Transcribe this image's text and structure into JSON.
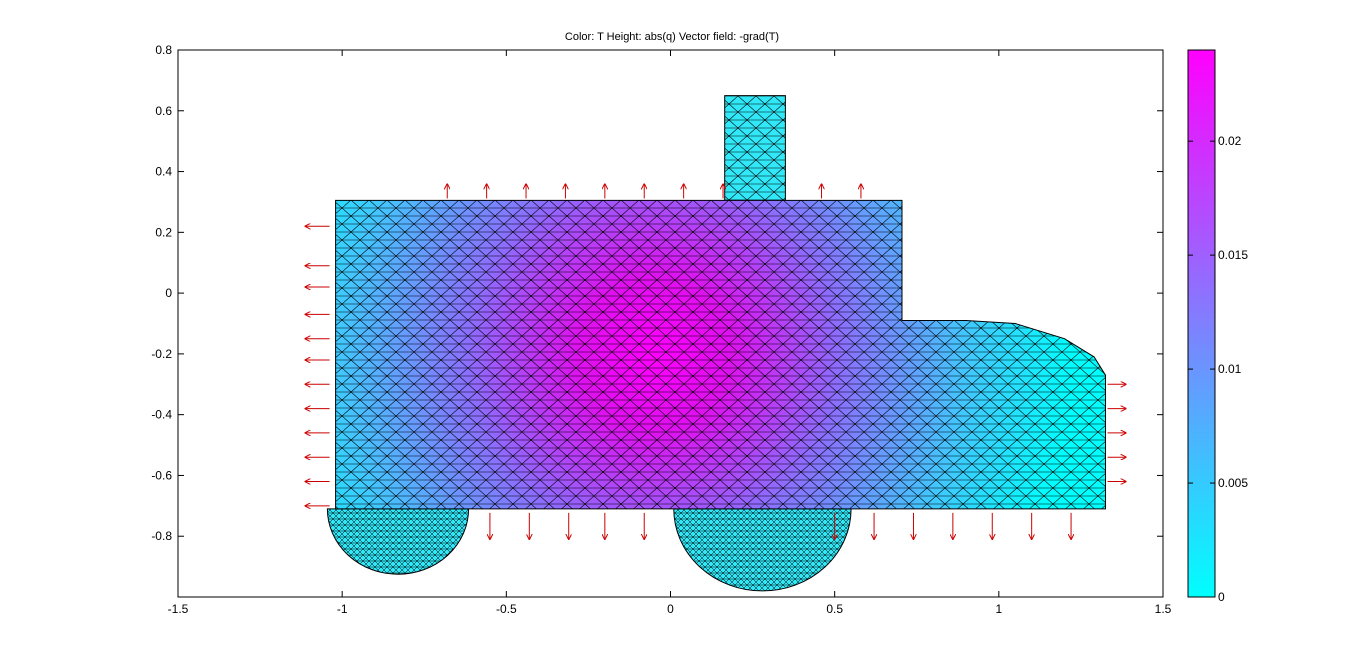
{
  "chart_data": {
    "type": "heatmap",
    "title": "Color: T  Height: abs(q)  Vector field: -grad(T)",
    "xlabel": "",
    "ylabel": "",
    "xlim": [
      -1.5,
      1.5
    ],
    "ylim": [
      -1.0,
      0.8
    ],
    "xticks": [
      -1.5,
      -1,
      -0.5,
      0,
      0.5,
      1,
      1.5
    ],
    "xtick_labels": [
      "-1.5",
      "-1",
      "-0.5",
      "0",
      "0.5",
      "1",
      "1.5"
    ],
    "yticks": [
      -0.8,
      -0.6,
      -0.4,
      -0.2,
      0,
      0.2,
      0.4,
      0.6,
      0.8
    ],
    "ytick_labels": [
      "-0.8",
      "-0.6",
      "-0.4",
      "-0.2",
      "0",
      "0.2",
      "0.4",
      "0.6",
      "0.8"
    ],
    "colorbar": {
      "range": [
        0,
        0.024
      ],
      "ticks": [
        0,
        0.005,
        0.01,
        0.015,
        0.02
      ],
      "tick_labels": [
        "0",
        "0.005",
        "0.01",
        "0.015",
        "0.02"
      ],
      "colors": [
        "#00ffff",
        "#ff00ff"
      ]
    },
    "geometry": {
      "body": [
        [
          -1.02,
          0.305
        ],
        [
          0.705,
          0.305
        ],
        [
          0.705,
          -0.09
        ],
        [
          0.9,
          -0.09
        ],
        [
          1.05,
          -0.1
        ],
        [
          1.2,
          -0.15
        ],
        [
          1.29,
          -0.21
        ],
        [
          1.325,
          -0.27
        ],
        [
          1.325,
          -0.71
        ],
        [
          -1.02,
          -0.71
        ]
      ],
      "chimney": [
        [
          0.165,
          0.65
        ],
        [
          0.35,
          0.65
        ],
        [
          0.35,
          0.305
        ],
        [
          0.165,
          0.305
        ]
      ],
      "wheels": [
        {
          "cx": -0.83,
          "cy": -0.71,
          "r": 0.215
        },
        {
          "cx": 0.28,
          "cy": -0.71,
          "r": 0.27
        }
      ],
      "hot_spot": [
        -0.05,
        -0.2
      ],
      "mesh": "black"
    },
    "vector_field": {
      "name": "-grad(T)",
      "color": "#cc0000",
      "left_side_y": [
        0.22,
        0.09,
        0.02,
        -0.07,
        -0.15,
        -0.22,
        -0.3,
        -0.38,
        -0.46,
        -0.54,
        -0.62,
        -0.7
      ],
      "top_side_x": [
        -0.68,
        -0.56,
        -0.44,
        -0.32,
        -0.2,
        -0.08,
        0.04,
        0.16,
        0.46,
        0.58
      ],
      "bottom_side_x": [
        -0.55,
        -0.43,
        -0.31,
        -0.2,
        -0.08,
        0.5,
        0.62,
        0.74,
        0.86,
        0.98,
        1.1,
        1.22
      ],
      "right_side_y": [
        -0.3,
        -0.38,
        -0.46,
        -0.54,
        -0.62
      ]
    }
  }
}
